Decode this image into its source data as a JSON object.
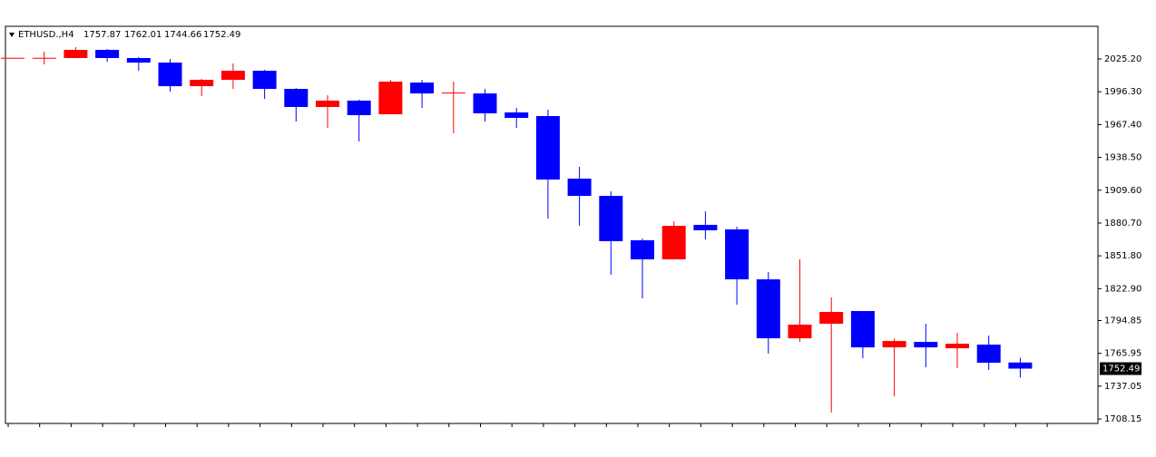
{
  "chart_data": {
    "type": "candlestick",
    "title": "ETHUSD.,H4",
    "up_color": "#ff0000",
    "down_color": "#0000ff",
    "ylim": [
      1704.2,
      2053.15
    ],
    "yticks": [
      {
        "value": 2025.2,
        "label": "2025.20"
      },
      {
        "value": 1996.3,
        "label": "1996.30"
      },
      {
        "value": 1967.4,
        "label": "1967.40"
      },
      {
        "value": 1938.5,
        "label": "1938.50"
      },
      {
        "value": 1909.6,
        "label": "1909.60"
      },
      {
        "value": 1880.7,
        "label": "1880.70"
      },
      {
        "value": 1851.8,
        "label": "1851.80"
      },
      {
        "value": 1822.9,
        "label": "1822.90"
      },
      1794.85,
      1765.95,
      1737.05,
      1708.15
    ],
    "open": [
      2026,
      2026,
      2026,
      2033.2,
      2026,
      2022,
      2001.2,
      2006.8,
      2014.8,
      1998.8,
      1982.9,
      1988.5,
      1976.5,
      2004.4,
      1994.8,
      1994.8,
      1978.1,
      1974.9,
      1919.8,
      1904.6,
      1865.5,
      1848.7,
      1879.1,
      1875.1,
      1831.1,
      1779.2,
      1792,
      1803.2,
      1771.2,
      1776,
      1770.4,
      1773.6,
      1757.87
    ],
    "high": [
      2026.4,
      2031.6,
      2035.6,
      2034,
      2026.8,
      2025.2,
      2007.6,
      2021.2,
      2015.6,
      1999.6,
      1993.3,
      1989.3,
      2006.8,
      2006.8,
      2005.2,
      1998.8,
      1982.1,
      1980.5,
      1930.2,
      1908.6,
      1867.1,
      1882.2,
      1891,
      1877.5,
      1837.5,
      1848.7,
      1815.2,
      1803.2,
      1779.2,
      1792,
      1784,
      1781.6,
      1762.01
    ],
    "low": [
      2025.6,
      2020.4,
      2026,
      2022.8,
      2014.8,
      1996.4,
      1992.4,
      1998.8,
      1990,
      1970.1,
      1964.5,
      1952.5,
      1976.5,
      1982.1,
      1959.7,
      1970.1,
      1964.5,
      1884.6,
      1878.2,
      1835.1,
      1814.4,
      1848.7,
      1866.3,
      1808.8,
      1765.7,
      1776,
      1713.8,
      1761.7,
      1728.1,
      1753.7,
      1752.9,
      1751.3,
      1744.66
    ],
    "close": [
      2026.2,
      2026.2,
      2033.2,
      2026,
      2022,
      2001.2,
      2006.8,
      2014.8,
      1998.8,
      1982.9,
      1988.5,
      1975.7,
      2005.2,
      1994.8,
      1995.6,
      1977.3,
      1973.3,
      1919,
      1904.6,
      1864.7,
      1848.7,
      1878.2,
      1874.3,
      1831.1,
      1779.2,
      1791.2,
      1802.4,
      1771.2,
      1776.8,
      1771.2,
      1774.4,
      1757.7,
      1752.49
    ]
  }
}
